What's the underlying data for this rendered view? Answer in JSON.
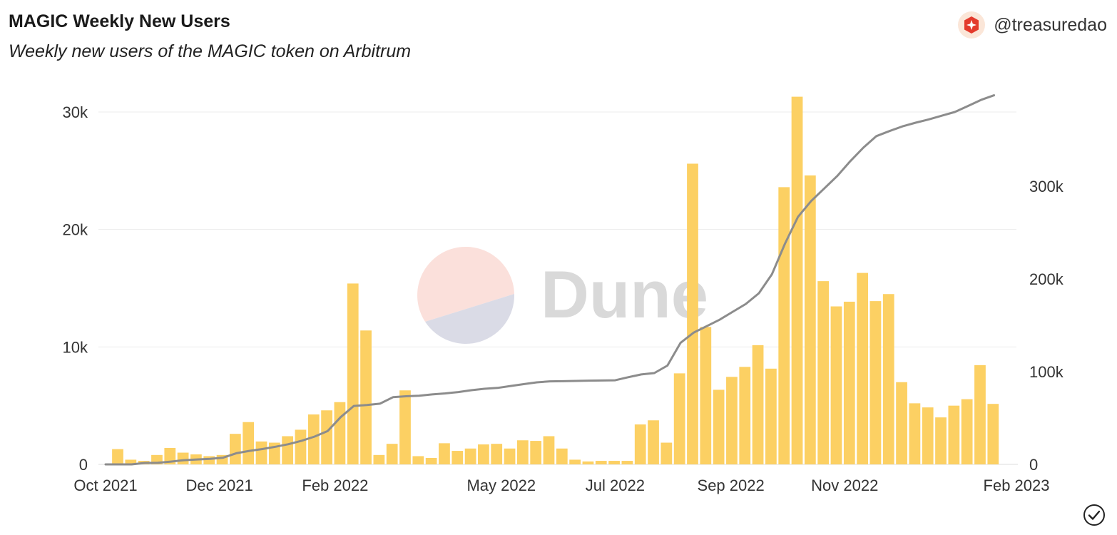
{
  "header": {
    "title": "MAGIC Weekly New Users",
    "subtitle": "Weekly new users of the MAGIC token on Arbitrum",
    "owner": "@treasuredao",
    "owner_avatar_icon": "treasure-logo-icon"
  },
  "watermark": {
    "text": "Dune"
  },
  "colors": {
    "bar": "#fcd063",
    "line": "#8c8c8c",
    "grid": "#ececec",
    "axis_text": "#333333",
    "logo_pink": "#fbe0db",
    "logo_lavender": "#dadbe6",
    "watermark_text": "#d9d9d9",
    "avatar_red": "#e33a2c"
  },
  "footer": {
    "check_icon": "checkmark-circle-icon"
  },
  "chart_data": {
    "type": "bar",
    "x_axis": {
      "range": [
        "2021-10-01",
        "2023-02-01"
      ],
      "ticks": [
        "Oct 2021",
        "Dec 2021",
        "Feb 2022",
        "May 2022",
        "Jul 2022",
        "Sep 2022",
        "Nov 2022",
        "Feb 2023"
      ],
      "tick_dates": [
        "2021-10-01",
        "2021-12-01",
        "2022-02-01",
        "2022-05-01",
        "2022-07-01",
        "2022-09-01",
        "2022-11-01",
        "2023-02-01"
      ]
    },
    "y_left": {
      "range": [
        0,
        32000
      ],
      "ticks": [
        0,
        10000,
        20000,
        30000
      ],
      "tick_labels": [
        "0",
        "10k",
        "20k",
        "30k"
      ]
    },
    "y_right": {
      "range": [
        0,
        400000
      ],
      "ticks": [
        0,
        100000,
        200000,
        300000
      ],
      "tick_labels": [
        "0",
        "100k",
        "200k",
        "300k"
      ]
    },
    "grid": true,
    "legend": "none",
    "series": [
      {
        "type": "bar",
        "axis": "left",
        "weeks": [
          "2021-10-04",
          "2021-10-11",
          "2021-10-18",
          "2021-10-25",
          "2021-11-01",
          "2021-11-08",
          "2021-11-15",
          "2021-11-22",
          "2021-11-29",
          "2021-12-06",
          "2021-12-13",
          "2021-12-20",
          "2021-12-27",
          "2022-01-03",
          "2022-01-10",
          "2022-01-17",
          "2022-01-24",
          "2022-01-31",
          "2022-02-07",
          "2022-02-14",
          "2022-02-21",
          "2022-02-28",
          "2022-03-07",
          "2022-03-14",
          "2022-03-21",
          "2022-03-28",
          "2022-04-04",
          "2022-04-11",
          "2022-04-18",
          "2022-04-25",
          "2022-05-02",
          "2022-05-09",
          "2022-05-16",
          "2022-05-23",
          "2022-05-30",
          "2022-06-06",
          "2022-06-13",
          "2022-06-20",
          "2022-06-27",
          "2022-07-04",
          "2022-07-11",
          "2022-07-18",
          "2022-07-25",
          "2022-08-01",
          "2022-08-08",
          "2022-08-15",
          "2022-08-22",
          "2022-08-29",
          "2022-09-05",
          "2022-09-12",
          "2022-09-19",
          "2022-09-26",
          "2022-10-03",
          "2022-10-10",
          "2022-10-17",
          "2022-10-24",
          "2022-10-31",
          "2022-11-07",
          "2022-11-14",
          "2022-11-21",
          "2022-11-28",
          "2022-12-05",
          "2022-12-12",
          "2022-12-19",
          "2022-12-26",
          "2023-01-02",
          "2023-01-09",
          "2023-01-16",
          "2023-01-23"
        ],
        "values": [
          1300,
          400,
          300,
          800,
          1400,
          1000,
          850,
          700,
          800,
          2600,
          3600,
          1950,
          1850,
          2400,
          2950,
          4250,
          4600,
          5300,
          15400,
          11400,
          800,
          1750,
          6300,
          700,
          550,
          1800,
          1150,
          1350,
          1700,
          1750,
          1350,
          2050,
          2000,
          2400,
          1350,
          400,
          250,
          300,
          300,
          300,
          3400,
          3750,
          1850,
          7750,
          25600,
          11700,
          6350,
          7450,
          8300,
          10150,
          8150,
          23600,
          31300,
          24600,
          15600,
          13450,
          13850,
          16300,
          13900,
          14500,
          7000,
          5200,
          4850,
          4000,
          5000,
          5550,
          8450,
          5150,
          0
        ]
      },
      {
        "type": "line",
        "axis": "right",
        "dates": [
          "2021-10-01",
          "2021-10-08",
          "2021-10-15",
          "2021-10-22",
          "2021-10-29",
          "2021-11-05",
          "2021-11-12",
          "2021-11-19",
          "2021-11-26",
          "2021-12-03",
          "2021-12-10",
          "2021-12-17",
          "2021-12-24",
          "2021-12-31",
          "2022-01-07",
          "2022-01-14",
          "2022-01-21",
          "2022-01-28",
          "2022-02-04",
          "2022-02-11",
          "2022-02-18",
          "2022-02-25",
          "2022-03-04",
          "2022-03-11",
          "2022-03-18",
          "2022-03-25",
          "2022-04-01",
          "2022-04-08",
          "2022-04-15",
          "2022-04-22",
          "2022-04-29",
          "2022-05-06",
          "2022-05-13",
          "2022-05-20",
          "2022-05-27",
          "2022-06-03",
          "2022-06-10",
          "2022-06-17",
          "2022-06-24",
          "2022-07-01",
          "2022-07-08",
          "2022-07-15",
          "2022-07-22",
          "2022-07-29",
          "2022-08-05",
          "2022-08-12",
          "2022-08-19",
          "2022-08-26",
          "2022-09-02",
          "2022-09-09",
          "2022-09-16",
          "2022-09-23",
          "2022-09-30",
          "2022-10-07",
          "2022-10-14",
          "2022-10-21",
          "2022-10-28",
          "2022-11-04",
          "2022-11-11",
          "2022-11-18",
          "2022-11-25",
          "2022-12-02",
          "2022-12-09",
          "2022-12-16",
          "2022-12-23",
          "2022-12-30",
          "2023-01-06",
          "2023-01-13",
          "2023-01-20"
        ],
        "values": [
          0,
          0,
          0,
          1500,
          1800,
          3000,
          4500,
          5300,
          6000,
          7200,
          12000,
          14500,
          16500,
          19000,
          21800,
          25500,
          30000,
          36000,
          51000,
          63000,
          64000,
          65500,
          72500,
          73500,
          74000,
          75500,
          76500,
          78000,
          80000,
          81500,
          82500,
          84500,
          86500,
          88500,
          89500,
          89700,
          90000,
          90300,
          90500,
          90700,
          94000,
          97000,
          98500,
          106500,
          131000,
          142000,
          149000,
          156000,
          164500,
          173000,
          184500,
          205000,
          238000,
          267000,
          284000,
          297500,
          311000,
          327000,
          341500,
          354000,
          359500,
          364500,
          368500,
          372000,
          376000,
          380000,
          386500,
          393000,
          398000
        ]
      }
    ]
  }
}
